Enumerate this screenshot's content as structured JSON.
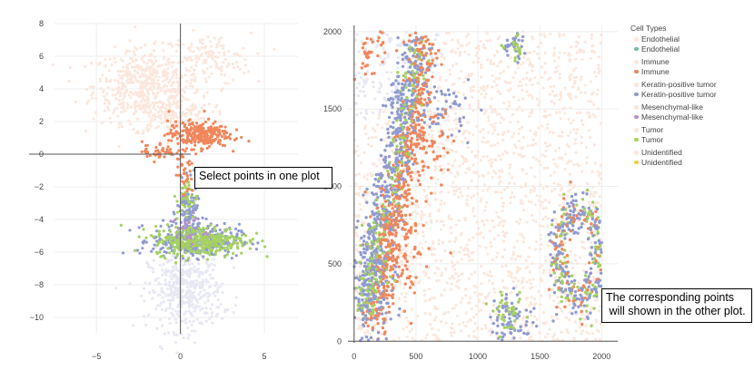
{
  "chart_data": [
    {
      "type": "scatter",
      "title": "",
      "xlabel": "",
      "ylabel": "",
      "xlim": [
        -7.5,
        7
      ],
      "ylim": [
        -11,
        8
      ],
      "x_ticks": [
        -5,
        0,
        5
      ],
      "y_ticks": [
        8,
        6,
        4,
        2,
        0,
        -2,
        -4,
        -6,
        -8,
        -10
      ],
      "x_tick_labels": [
        "−5",
        "0",
        "5"
      ],
      "y_tick_labels": [
        "8",
        "6",
        "4",
        "2",
        "0",
        "−2",
        "−4",
        "−6",
        "−8",
        "−10"
      ],
      "grid": true,
      "zero_lines": true,
      "series": [
        {
          "name": "Endothelial",
          "color": "#fbe7dd",
          "region": "upper-left lobe",
          "center": [
            -1.5,
            4.0
          ]
        },
        {
          "name": "Immune",
          "color": "#f0875c",
          "region": "branch near origin",
          "center": [
            1.0,
            1.2
          ]
        },
        {
          "name": "Keratin-positive tumor",
          "color": "#8f9bd0",
          "region": "lower stem",
          "center": [
            0.5,
            -5.0
          ]
        },
        {
          "name": "Mesenchymal-like",
          "color": "#b98fd0",
          "region": "sparse",
          "center": [
            0.5,
            -4.5
          ]
        },
        {
          "name": "Tumor",
          "color": "#a5d161",
          "region": "lower stem",
          "center": [
            1.5,
            -5.3
          ]
        },
        {
          "name": "Unidentified",
          "color": "#e7e8f3",
          "region": "bottom cluster",
          "center": [
            0.5,
            -8.5
          ]
        }
      ]
    },
    {
      "type": "scatter",
      "title": "",
      "xlabel": "",
      "ylabel": "",
      "xlim": [
        -50,
        2130
      ],
      "ylim": [
        -10,
        2040
      ],
      "x_ticks": [
        0,
        500,
        1000,
        1500,
        2000
      ],
      "y_ticks": [
        2000,
        1500,
        1000,
        500,
        0
      ],
      "x_tick_labels": [
        "0",
        "500",
        "1000",
        "1500",
        "2000"
      ],
      "y_tick_labels": [
        "2000",
        "1500",
        "1000",
        "500",
        "0"
      ],
      "grid": true,
      "series": [
        {
          "name": "Endothelial",
          "color": "#fbe7dd",
          "region": "background"
        },
        {
          "name": "Immune",
          "color": "#f0875c",
          "region": "band and clusters"
        },
        {
          "name": "Keratin-positive tumor",
          "color": "#8f9bd0",
          "region": "diagonal band and ring"
        },
        {
          "name": "Tumor",
          "color": "#a5d161",
          "region": "mixed in band"
        },
        {
          "name": "Unidentified",
          "color": "#e7e8f3",
          "region": "top-left"
        }
      ]
    }
  ],
  "legend": {
    "title": "Cell Types",
    "placement": "right",
    "groups": [
      {
        "items": [
          {
            "label": "Endothelial",
            "color": "#fbe7dd"
          },
          {
            "label": "Endothelial",
            "color": "#6fc1a7"
          }
        ]
      },
      {
        "items": [
          {
            "label": "Immune",
            "color": "#fbe7dd"
          },
          {
            "label": "Immune",
            "color": "#f0875c"
          }
        ]
      },
      {
        "items": [
          {
            "label": "Keratin-positive tumor",
            "color": "#fbe7dd"
          },
          {
            "label": "Keratin-positive tumor",
            "color": "#8f9bd0"
          }
        ]
      },
      {
        "items": [
          {
            "label": "Mesenchymal-like",
            "color": "#fbe7dd"
          },
          {
            "label": "Mesenchymal-like",
            "color": "#b98fd0"
          }
        ]
      },
      {
        "items": [
          {
            "label": "Tumor",
            "color": "#fbe7dd"
          },
          {
            "label": "Tumor",
            "color": "#a5d161"
          }
        ]
      },
      {
        "items": [
          {
            "label": "Unidentified",
            "color": "#fbe7dd"
          },
          {
            "label": "Unidentified",
            "color": "#f7c946"
          }
        ]
      }
    ]
  },
  "annotations": {
    "left": "Select points in one plot",
    "right_line1": "The corresponding points",
    "right_line2": " will shown in the other plot."
  }
}
